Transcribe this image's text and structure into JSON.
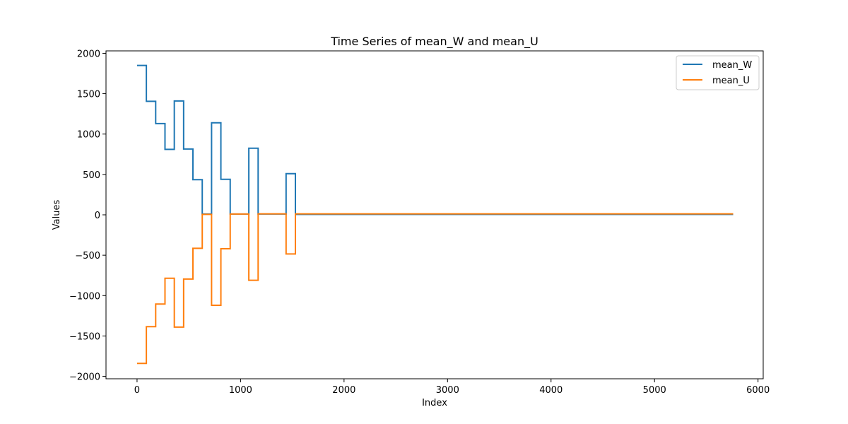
{
  "chart_data": {
    "type": "line",
    "title": "Time Series of mean_W and mean_U",
    "xlabel": "Index",
    "ylabel": "Values",
    "xlim": [
      -300,
      6050
    ],
    "ylim": [
      -2030,
      2030
    ],
    "xticks": [
      0,
      1000,
      2000,
      3000,
      4000,
      5000,
      6000
    ],
    "yticks": [
      -2000,
      -1500,
      -1000,
      -500,
      0,
      500,
      1000,
      1500,
      2000
    ],
    "xtick_labels": [
      "0",
      "1000",
      "2000",
      "3000",
      "4000",
      "5000",
      "6000"
    ],
    "ytick_labels": [
      "−2000",
      "−1500",
      "−1000",
      "−500",
      "0",
      "500",
      "1000",
      "1500",
      "2000"
    ],
    "legend_position": "upper right",
    "grid": false,
    "series": [
      {
        "name": "mean_W",
        "color": "#1f77b4",
        "x": [
          0,
          90,
          90,
          180,
          180,
          270,
          270,
          360,
          360,
          450,
          450,
          540,
          540,
          630,
          630,
          720,
          720,
          810,
          810,
          900,
          900,
          1080,
          1080,
          1170,
          1170,
          1440,
          1440,
          1530,
          1530,
          5760
        ],
        "y": [
          1850,
          1850,
          1405,
          1405,
          1130,
          1130,
          810,
          810,
          1410,
          1410,
          815,
          815,
          435,
          435,
          10,
          10,
          1140,
          1140,
          440,
          440,
          10,
          10,
          825,
          825,
          10,
          10,
          510,
          510,
          5,
          5
        ]
      },
      {
        "name": "mean_U",
        "color": "#ff7f0e",
        "x": [
          0,
          90,
          90,
          180,
          180,
          270,
          270,
          360,
          360,
          450,
          450,
          540,
          540,
          630,
          630,
          720,
          720,
          810,
          810,
          900,
          900,
          1080,
          1080,
          1170,
          1170,
          1440,
          1440,
          1530,
          1530,
          5760
        ],
        "y": [
          -1840,
          -1840,
          -1385,
          -1385,
          -1105,
          -1105,
          -785,
          -785,
          -1390,
          -1390,
          -795,
          -795,
          -415,
          -415,
          5,
          5,
          -1120,
          -1120,
          -420,
          -420,
          10,
          10,
          -810,
          -810,
          12,
          12,
          -485,
          -485,
          12,
          12
        ]
      }
    ]
  }
}
